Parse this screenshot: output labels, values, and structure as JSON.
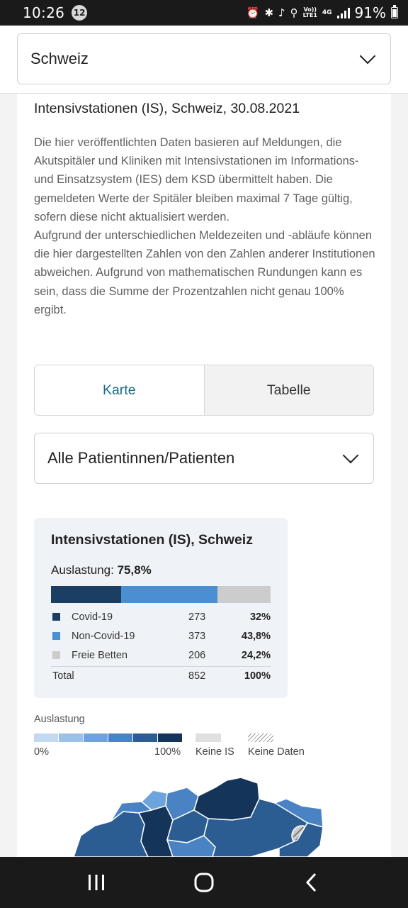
{
  "status_bar": {
    "time": "10:26",
    "notification_count": "12",
    "volte_top": "Vo))",
    "volte_bottom": "LTE1",
    "network": "4G",
    "battery": "91%"
  },
  "region_select": {
    "value": "Schweiz"
  },
  "card": {
    "title": "Intensivstationen (IS), Schweiz, 30.08.2021",
    "description": "Die hier veröffentlichten Daten basieren auf Meldungen, die Akutspitäler und Kliniken mit Intensivstationen im Informations- und Einsatzsystem (IES) dem KSD übermittelt haben. Die gemeldeten Werte der Spitäler bleiben maximal 7 Tage gültig, sofern diese nicht aktualisiert werden.\nAufgrund der unterschiedlichen Meldezeiten und -abläufe können die hier dargestellten Zahlen von den Zahlen anderer Institutionen abweichen. Aufgrund von mathematischen Rundungen kann es sein, dass die Summe der Prozentzahlen nicht genau 100% ergibt.",
    "tabs": [
      {
        "label": "Karte",
        "active": true
      },
      {
        "label": "Tabelle",
        "active": false
      }
    ],
    "patient_select": {
      "value": "Alle Patientinnen/Patienten"
    },
    "stats": {
      "title": "Intensivstationen (IS), Schweiz",
      "utilization_label": "Auslastung:",
      "utilization_value": "75,8%",
      "rows": [
        {
          "name": "Covid-19",
          "count": "273",
          "percent": "32%",
          "fraction": 0.32,
          "color": "#1b3e63"
        },
        {
          "name": "Non-Covid-19",
          "count": "373",
          "percent": "43,8%",
          "fraction": 0.438,
          "color": "#4a8fd2"
        },
        {
          "name": "Freie Betten",
          "count": "206",
          "percent": "24,2%",
          "fraction": 0.242,
          "color": "#cccccc"
        }
      ],
      "total": {
        "name": "Total",
        "count": "852",
        "percent": "100%"
      }
    },
    "legend": {
      "title": "Auslastung",
      "scale_colors": [
        "#c3d9f1",
        "#9cc1e8",
        "#6fa3db",
        "#4a83c4",
        "#2c5d92",
        "#143459"
      ],
      "min_label": "0%",
      "max_label": "100%",
      "no_is_label": "Keine IS",
      "no_data_label": "Keine Daten"
    }
  }
}
